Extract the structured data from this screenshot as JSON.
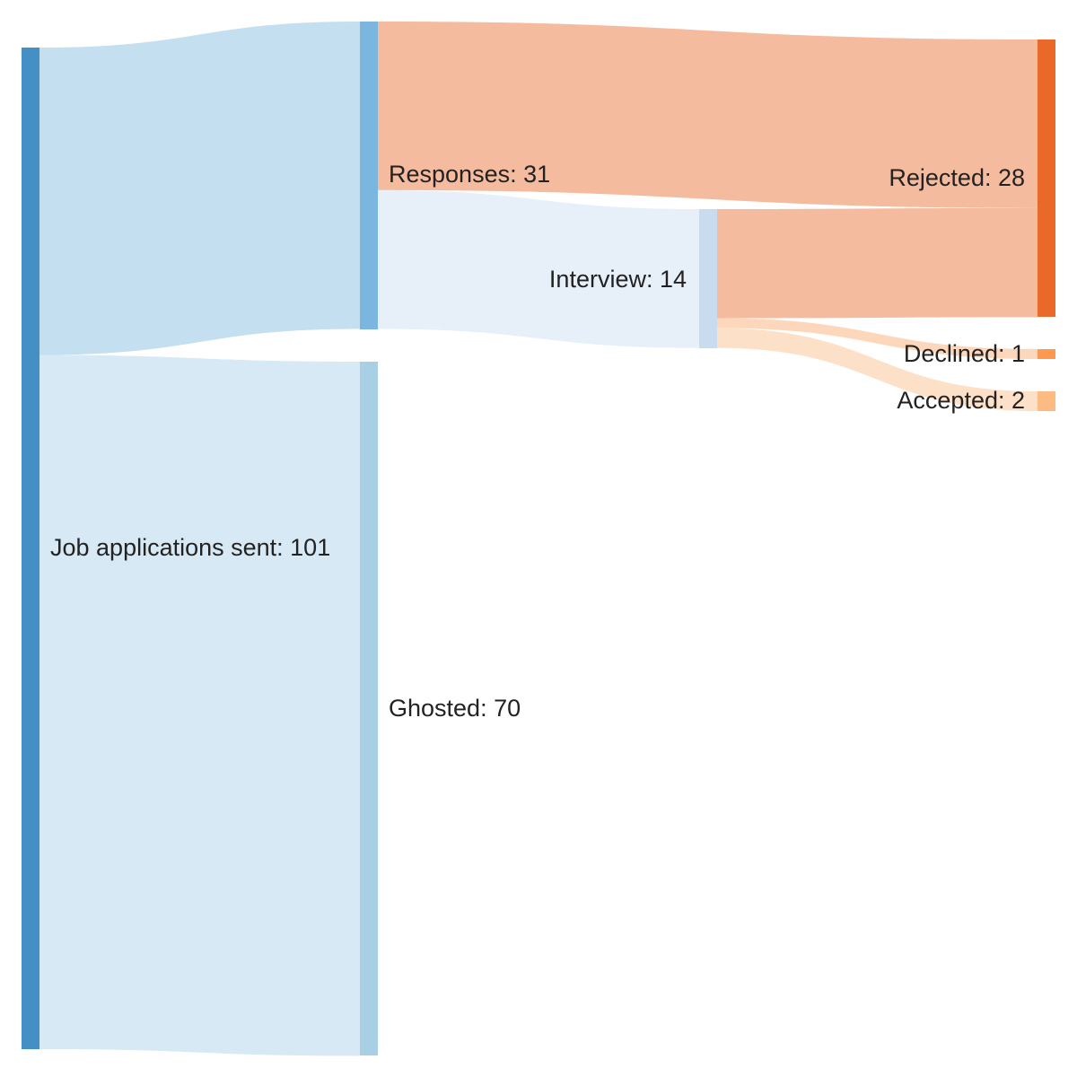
{
  "nodes": [
    {
      "id": "applications",
      "label": "Job applications sent: 101",
      "value": 101,
      "color": "#4490c5"
    },
    {
      "id": "responses",
      "label": "Responses: 31",
      "value": 31,
      "color": "#7ab6dd"
    },
    {
      "id": "ghosted",
      "label": "Ghosted: 70",
      "value": 70,
      "color": "#a8cfe3"
    },
    {
      "id": "interview",
      "label": "Interview: 14",
      "value": 14,
      "color": "#c9dcef"
    },
    {
      "id": "rejected",
      "label": "Rejected: 28",
      "value": 28,
      "color": "#e8692a"
    },
    {
      "id": "declined",
      "label": "Declined: 1",
      "value": 1,
      "color": "#fd984f"
    },
    {
      "id": "accepted",
      "label": "Accepted: 2",
      "value": 2,
      "color": "#fdbb84"
    }
  ],
  "links": [
    {
      "source": "applications",
      "target": "responses",
      "value": 31,
      "color": "#c3dff0"
    },
    {
      "source": "applications",
      "target": "ghosted",
      "value": 70,
      "color": "#d7e9f4"
    },
    {
      "source": "responses",
      "target": "rejected",
      "value": 17,
      "color": "#f5bb9f"
    },
    {
      "source": "responses",
      "target": "interview",
      "value": 14,
      "color": "#e7f0f9"
    },
    {
      "source": "interview",
      "target": "rejected",
      "value": 11,
      "color": "#f5bb9f"
    },
    {
      "source": "interview",
      "target": "declined",
      "value": 1,
      "color": "#fdd7bc"
    },
    {
      "source": "interview",
      "target": "accepted",
      "value": 2,
      "color": "#fde0c8"
    }
  ]
}
